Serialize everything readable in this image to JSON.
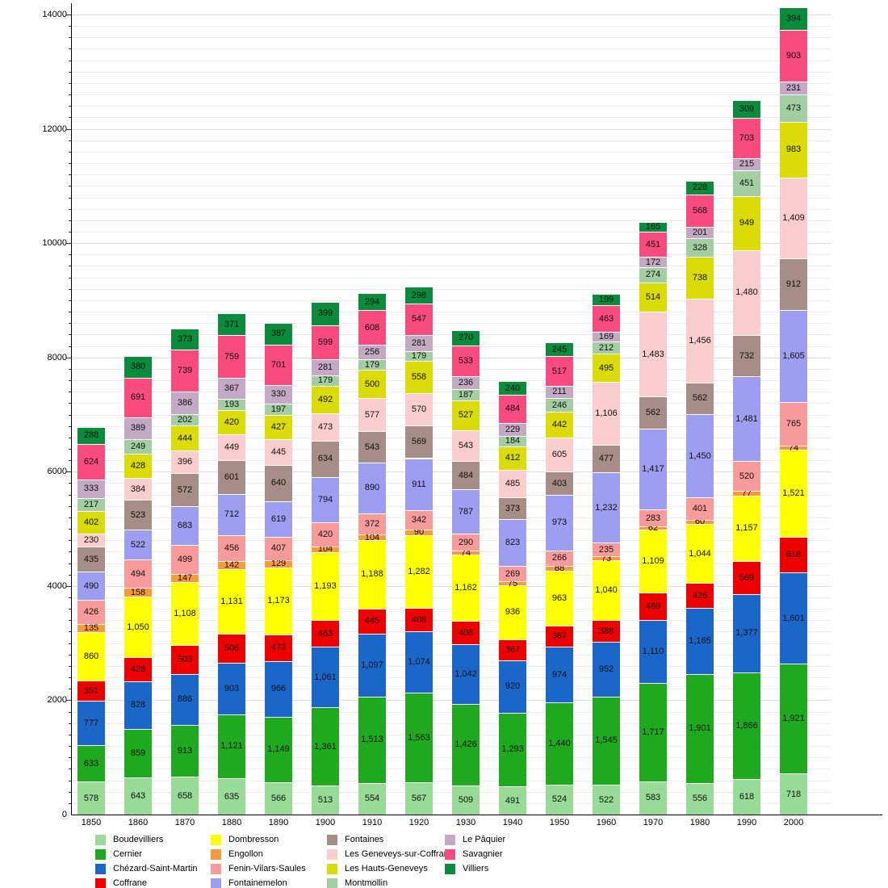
{
  "chart_data": {
    "type": "bar",
    "stacked": true,
    "title": "",
    "xlabel": "",
    "ylabel": "",
    "categories": [
      "1850",
      "1860",
      "1870",
      "1880",
      "1890",
      "1900",
      "1910",
      "1920",
      "1930",
      "1940",
      "1950",
      "1960",
      "1970",
      "1980",
      "1990",
      "2000"
    ],
    "ylim": [
      0,
      14000
    ],
    "y_ticks": [
      0,
      2000,
      4000,
      6000,
      8000,
      10000,
      12000,
      14000
    ],
    "y_minor_step": 200,
    "grid": true,
    "legend_position": "bottom",
    "series": [
      {
        "name": "Boudevilliers",
        "color": "#97DB97",
        "values": [
          578,
          643,
          658,
          635,
          566,
          513,
          554,
          567,
          509,
          491,
          524,
          522,
          583,
          556,
          618,
          718
        ]
      },
      {
        "name": "Cernier",
        "color": "#1EA91E",
        "values": [
          633,
          859,
          913,
          1121,
          1149,
          1361,
          1513,
          1563,
          1426,
          1293,
          1440,
          1545,
          1717,
          1901,
          1866,
          1921
        ]
      },
      {
        "name": "Chézard-Saint-Martin",
        "color": "#1A67C9",
        "values": [
          777,
          828,
          886,
          903,
          966,
          1061,
          1097,
          1074,
          1042,
          920,
          974,
          952,
          1110,
          1165,
          1377,
          1601
        ]
      },
      {
        "name": "Coffrane",
        "color": "#EE0000",
        "values": [
          351,
          428,
          503,
          506,
          473,
          463,
          445,
          408,
          408,
          367,
          367,
          388,
          469,
          426,
          569,
          618
        ]
      },
      {
        "name": "Dombresson",
        "color": "#FFFF00",
        "values": [
          860,
          1050,
          1108,
          1131,
          1173,
          1193,
          1188,
          1282,
          1162,
          936,
          963,
          1040,
          1109,
          1044,
          1157,
          1521
        ]
      },
      {
        "name": "Engollon",
        "color": "#FA9A38",
        "values": [
          135,
          158,
          147,
          142,
          129,
          104,
          104,
          90,
          74,
          75,
          88,
          73,
          62,
          60,
          77,
          74
        ]
      },
      {
        "name": "Fenin-Vilars-Saules",
        "color": "#F99B9B",
        "values": [
          426,
          494,
          499,
          456,
          407,
          420,
          372,
          342,
          290,
          269,
          266,
          235,
          283,
          401,
          520,
          765
        ]
      },
      {
        "name": "Fontainemelon",
        "color": "#9D9DF2",
        "values": [
          490,
          522,
          683,
          712,
          619,
          794,
          890,
          911,
          787,
          823,
          973,
          1232,
          1417,
          1450,
          1481,
          1605
        ]
      },
      {
        "name": "Fontaines",
        "color": "#A68E86",
        "values": [
          435,
          523,
          572,
          601,
          640,
          634,
          543,
          569,
          484,
          373,
          403,
          477,
          562,
          562,
          732,
          912
        ]
      },
      {
        "name": "Les Geneveys-sur-Coffrane",
        "color": "#FBCDCD",
        "values": [
          230,
          384,
          396,
          449,
          445,
          473,
          577,
          570,
          543,
          485,
          605,
          1106,
          1483,
          1456,
          1480,
          1409
        ]
      },
      {
        "name": "Les Hauts-Geneveys",
        "color": "#DBDB05",
        "values": [
          402,
          428,
          444,
          420,
          427,
          492,
          500,
          558,
          527,
          412,
          442,
          495,
          514,
          738,
          949,
          983
        ]
      },
      {
        "name": "Montmollin",
        "color": "#A2CEA2",
        "values": [
          217,
          249,
          202,
          193,
          197,
          179,
          179,
          179,
          187,
          184,
          246,
          212,
          274,
          328,
          451,
          473
        ]
      },
      {
        "name": "Le Pâquier",
        "color": "#C4A9C4",
        "values": [
          333,
          389,
          386,
          367,
          330,
          281,
          256,
          281,
          236,
          229,
          211,
          169,
          172,
          201,
          215,
          231
        ]
      },
      {
        "name": "Savagnier",
        "color": "#F94B80",
        "values": [
          624,
          691,
          739,
          759,
          701,
          599,
          608,
          547,
          533,
          484,
          517,
          463,
          451,
          568,
          703,
          903
        ]
      },
      {
        "name": "Villiers",
        "color": "#0A8C3C",
        "values": [
          288,
          380,
          373,
          371,
          387,
          399,
          294,
          298,
          270,
          240,
          245,
          199,
          165,
          228,
          309,
          394
        ]
      }
    ],
    "legend_columns": [
      [
        "Boudevilliers",
        "Cernier",
        "Chézard-Saint-Martin",
        "Coffrane"
      ],
      [
        "Dombresson",
        "Engollon",
        "Fenin-Vilars-Saules",
        "Fontainemelon"
      ],
      [
        "Fontaines",
        "Les Geneveys-sur-Coffrane",
        "Les Hauts-Geneveys",
        "Montmollin"
      ],
      [
        "Le Pâquier",
        "Savagnier",
        "Villiers"
      ]
    ]
  },
  "style": {
    "grid_minor_color": "#ECECEC",
    "grid_major_color": "#DEDEDE",
    "axis_color": "#000000",
    "label_color": "#111111"
  }
}
